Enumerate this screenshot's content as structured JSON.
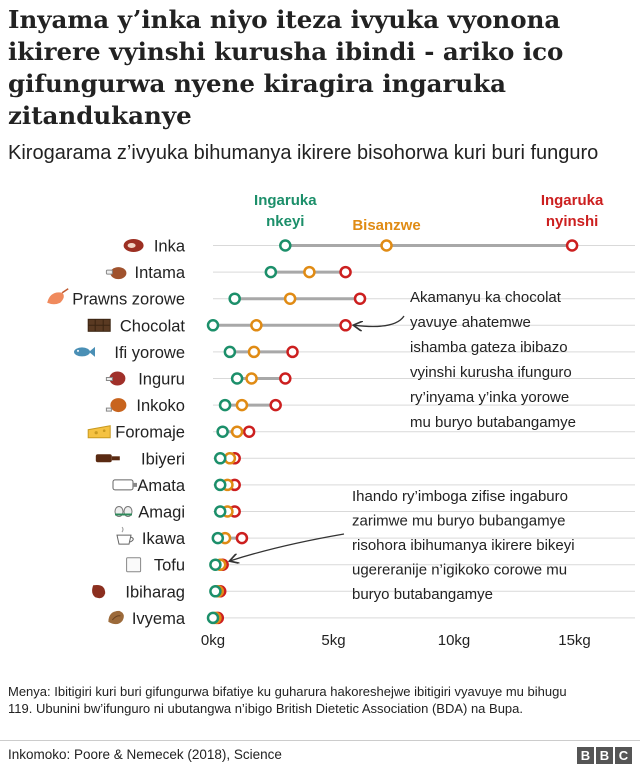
{
  "header": {
    "title": "Inyama y’inka niyo iteza ivyuka vyonona ikirere vyinshi kurusha ibindi - ariko ico gifungurwa nyene kiragira ingaruka zitandukanye",
    "subtitle": "Kirogarama z’ivyuka bihumanya ikirere bisohorwa kuri buri funguro"
  },
  "colors": {
    "low": "#1c8f6a",
    "median": "#e08b14",
    "high": "#cc1f1f",
    "connector": "#a8a8a8",
    "gridline": "#d9d9d9"
  },
  "chart_data": {
    "type": "dot-range",
    "legend": [
      {
        "key": "low",
        "label": [
          "Ingaruka",
          "nkeyi"
        ]
      },
      {
        "key": "median",
        "label": [
          "Bisanzwe"
        ]
      },
      {
        "key": "high",
        "label": [
          "Ingaruka",
          "nyinshi"
        ]
      }
    ],
    "x_ticks": [
      {
        "value": 0,
        "label": "0kg"
      },
      {
        "value": 5,
        "label": "5kg"
      },
      {
        "value": 10,
        "label": "10kg"
      },
      {
        "value": 15,
        "label": "15kg"
      }
    ],
    "xlim": [
      0,
      16.5
    ],
    "categories": [
      {
        "name": "Inka",
        "icon": "beef-icon",
        "low": 3.0,
        "median": 7.2,
        "high": 14.9
      },
      {
        "name": "Intama",
        "icon": "lamb-icon",
        "low": 2.4,
        "median": 4.0,
        "high": 5.5
      },
      {
        "name": "Prawns zorowe",
        "icon": "prawn-icon",
        "low": 0.9,
        "median": 3.2,
        "high": 6.1
      },
      {
        "name": "Chocolat",
        "icon": "chocolate-icon",
        "low": 0.0,
        "median": 1.8,
        "high": 5.5
      },
      {
        "name": "Ifi yorowe",
        "icon": "fish-icon",
        "low": 0.7,
        "median": 1.7,
        "high": 3.3
      },
      {
        "name": "Inguru",
        "icon": "pork-icon",
        "low": 1.0,
        "median": 1.6,
        "high": 3.0
      },
      {
        "name": "Inkoko",
        "icon": "chicken-icon",
        "low": 0.5,
        "median": 1.2,
        "high": 2.6
      },
      {
        "name": "Foromaje",
        "icon": "cheese-icon",
        "low": 0.4,
        "median": 1.0,
        "high": 1.5
      },
      {
        "name": "Ibiyeri",
        "icon": "beer-icon",
        "low": 0.3,
        "median": 0.7,
        "high": 0.9
      },
      {
        "name": "Amata",
        "icon": "milk-icon",
        "low": 0.3,
        "median": 0.6,
        "high": 0.9
      },
      {
        "name": "Amagi",
        "icon": "eggs-icon",
        "low": 0.3,
        "median": 0.6,
        "high": 0.9
      },
      {
        "name": "Ikawa",
        "icon": "coffee-icon",
        "low": 0.2,
        "median": 0.5,
        "high": 1.2
      },
      {
        "name": "Tofu",
        "icon": "tofu-icon",
        "low": 0.1,
        "median": 0.3,
        "high": 0.4
      },
      {
        "name": "Ibiharag",
        "icon": "bean-icon",
        "low": 0.1,
        "median": 0.2,
        "high": 0.3
      },
      {
        "name": "Ivyema",
        "icon": "nut-icon",
        "low": 0.0,
        "median": 0.1,
        "high": 0.2
      }
    ],
    "annotations": [
      {
        "lines": [
          "Akamanyu ka chocolat",
          "yavuye ahatemwe",
          "ishamba gateza ibibazo",
          "vyinshi kurusha ifunguro",
          "ry’inyama y’inka yorowe",
          "mu buryo butabangamye"
        ],
        "target_category": "Chocolat"
      },
      {
        "lines": [
          "Ihando ry’imboga zifise ingaburo",
          "zarimwe mu buryo bubangamye",
          "risohora ibihumanya ikirere bikeyi",
          "ugereranije n’igikoko corowe mu",
          "buryo butabangamye"
        ],
        "target_category": "Tofu"
      }
    ]
  },
  "footer": {
    "note": "Menya: Ibitigiri kuri buri gifungurwa bifatiye ku guharura hakoreshejwe ibitigiri vyavuye mu bihugu 119. Ubunini bw’ifunguro ni ubutangwa n’ibigo British Dietetic Association (BDA) na Bupa.",
    "source": "Inkomoko: Poore & Nemecek (2018), Science",
    "logo_letters": [
      "B",
      "B",
      "C"
    ]
  }
}
